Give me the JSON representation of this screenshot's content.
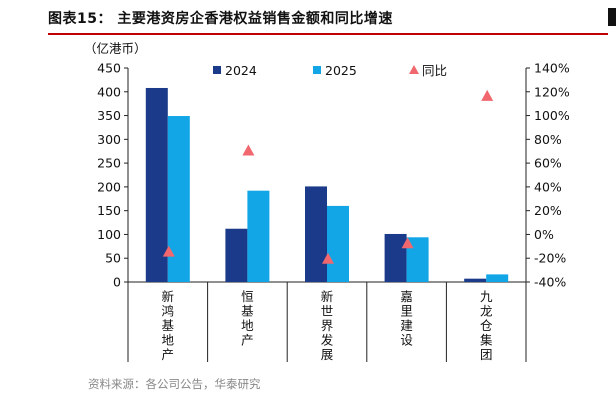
{
  "header": {
    "title": "图表15：  主要港资房企香港权益销售金额和同比增速",
    "unit": "（亿港币）",
    "source": "资料来源：各公司公告，华泰研究"
  },
  "chart_data": {
    "type": "bar",
    "categories": [
      "新鸿基地产",
      "恒基地产",
      "新世界发展",
      "嘉里建设",
      "九龙仓集团"
    ],
    "series": [
      {
        "name": "2024",
        "type": "bar",
        "axis": "left",
        "color": "#1c3a8a",
        "values": [
          408,
          112,
          201,
          101,
          7
        ]
      },
      {
        "name": "2025",
        "type": "bar",
        "axis": "left",
        "color": "#12a6e6",
        "values": [
          349,
          192,
          160,
          94,
          16
        ]
      },
      {
        "name": "同比",
        "type": "scatter",
        "axis": "right",
        "color": "#f0676e",
        "marker": "triangle",
        "values": [
          -14,
          71,
          -20,
          -7,
          117
        ]
      }
    ],
    "ylim": [
      0,
      450
    ],
    "y_ticks": [
      0,
      50,
      100,
      150,
      200,
      250,
      300,
      350,
      400,
      450
    ],
    "y2lim": [
      -40,
      140
    ],
    "y2_ticks": [
      "-40%",
      "-20%",
      "0%",
      "20%",
      "40%",
      "60%",
      "80%",
      "100%",
      "120%",
      "140%"
    ],
    "legend_position": "top",
    "grid": false
  }
}
